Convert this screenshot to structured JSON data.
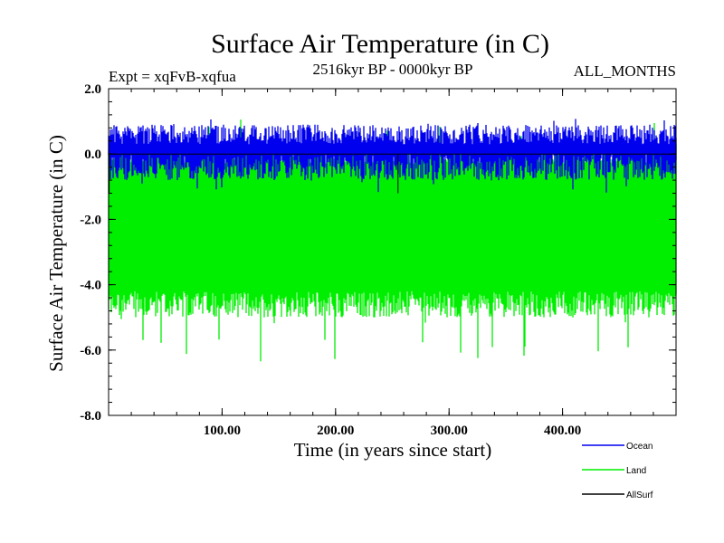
{
  "chart_data": {
    "type": "line",
    "title": "Surface Air Temperature (in C)",
    "subtitle_left": "Expt = xqFvB-xqfua",
    "subtitle_center": "2516kyr BP - 0000kyr BP",
    "subtitle_right": "ALL_MONTHS",
    "xlabel": "Time (in years since start)",
    "ylabel": "Surface Air Temperature (in C)",
    "xlim": [
      0,
      500
    ],
    "ylim": [
      -8.0,
      2.0
    ],
    "x_ticks": [
      100,
      200,
      300,
      400
    ],
    "x_tick_labels": [
      "100.00",
      "200.00",
      "300.00",
      "400.00"
    ],
    "y_ticks": [
      2.0,
      0.0,
      -2.0,
      -4.0,
      -6.0,
      -8.0
    ],
    "y_tick_labels": [
      "2.0",
      "0.0",
      "-2.0",
      "-4.0",
      "-6.0",
      "-8.0"
    ],
    "legend_position": "bottom-right, outside plot",
    "series": [
      {
        "name": "Land",
        "color": "#00ee00",
        "x_range": [
          0,
          500
        ],
        "upper_envelope_mean": 0.0,
        "lower_envelope_mean": -4.6,
        "max": 1.1,
        "min": -6.4
      },
      {
        "name": "Ocean",
        "color": "#0000ee",
        "x_range": [
          0,
          500
        ],
        "upper_envelope_mean": 0.6,
        "lower_envelope_mean": -0.4,
        "max": 1.1,
        "min": -1.2
      },
      {
        "name": "AllSurf",
        "color": "#000000",
        "x_range": [
          0,
          500
        ],
        "mean": 0.0,
        "min": -1.2,
        "max": 0.1
      }
    ]
  }
}
